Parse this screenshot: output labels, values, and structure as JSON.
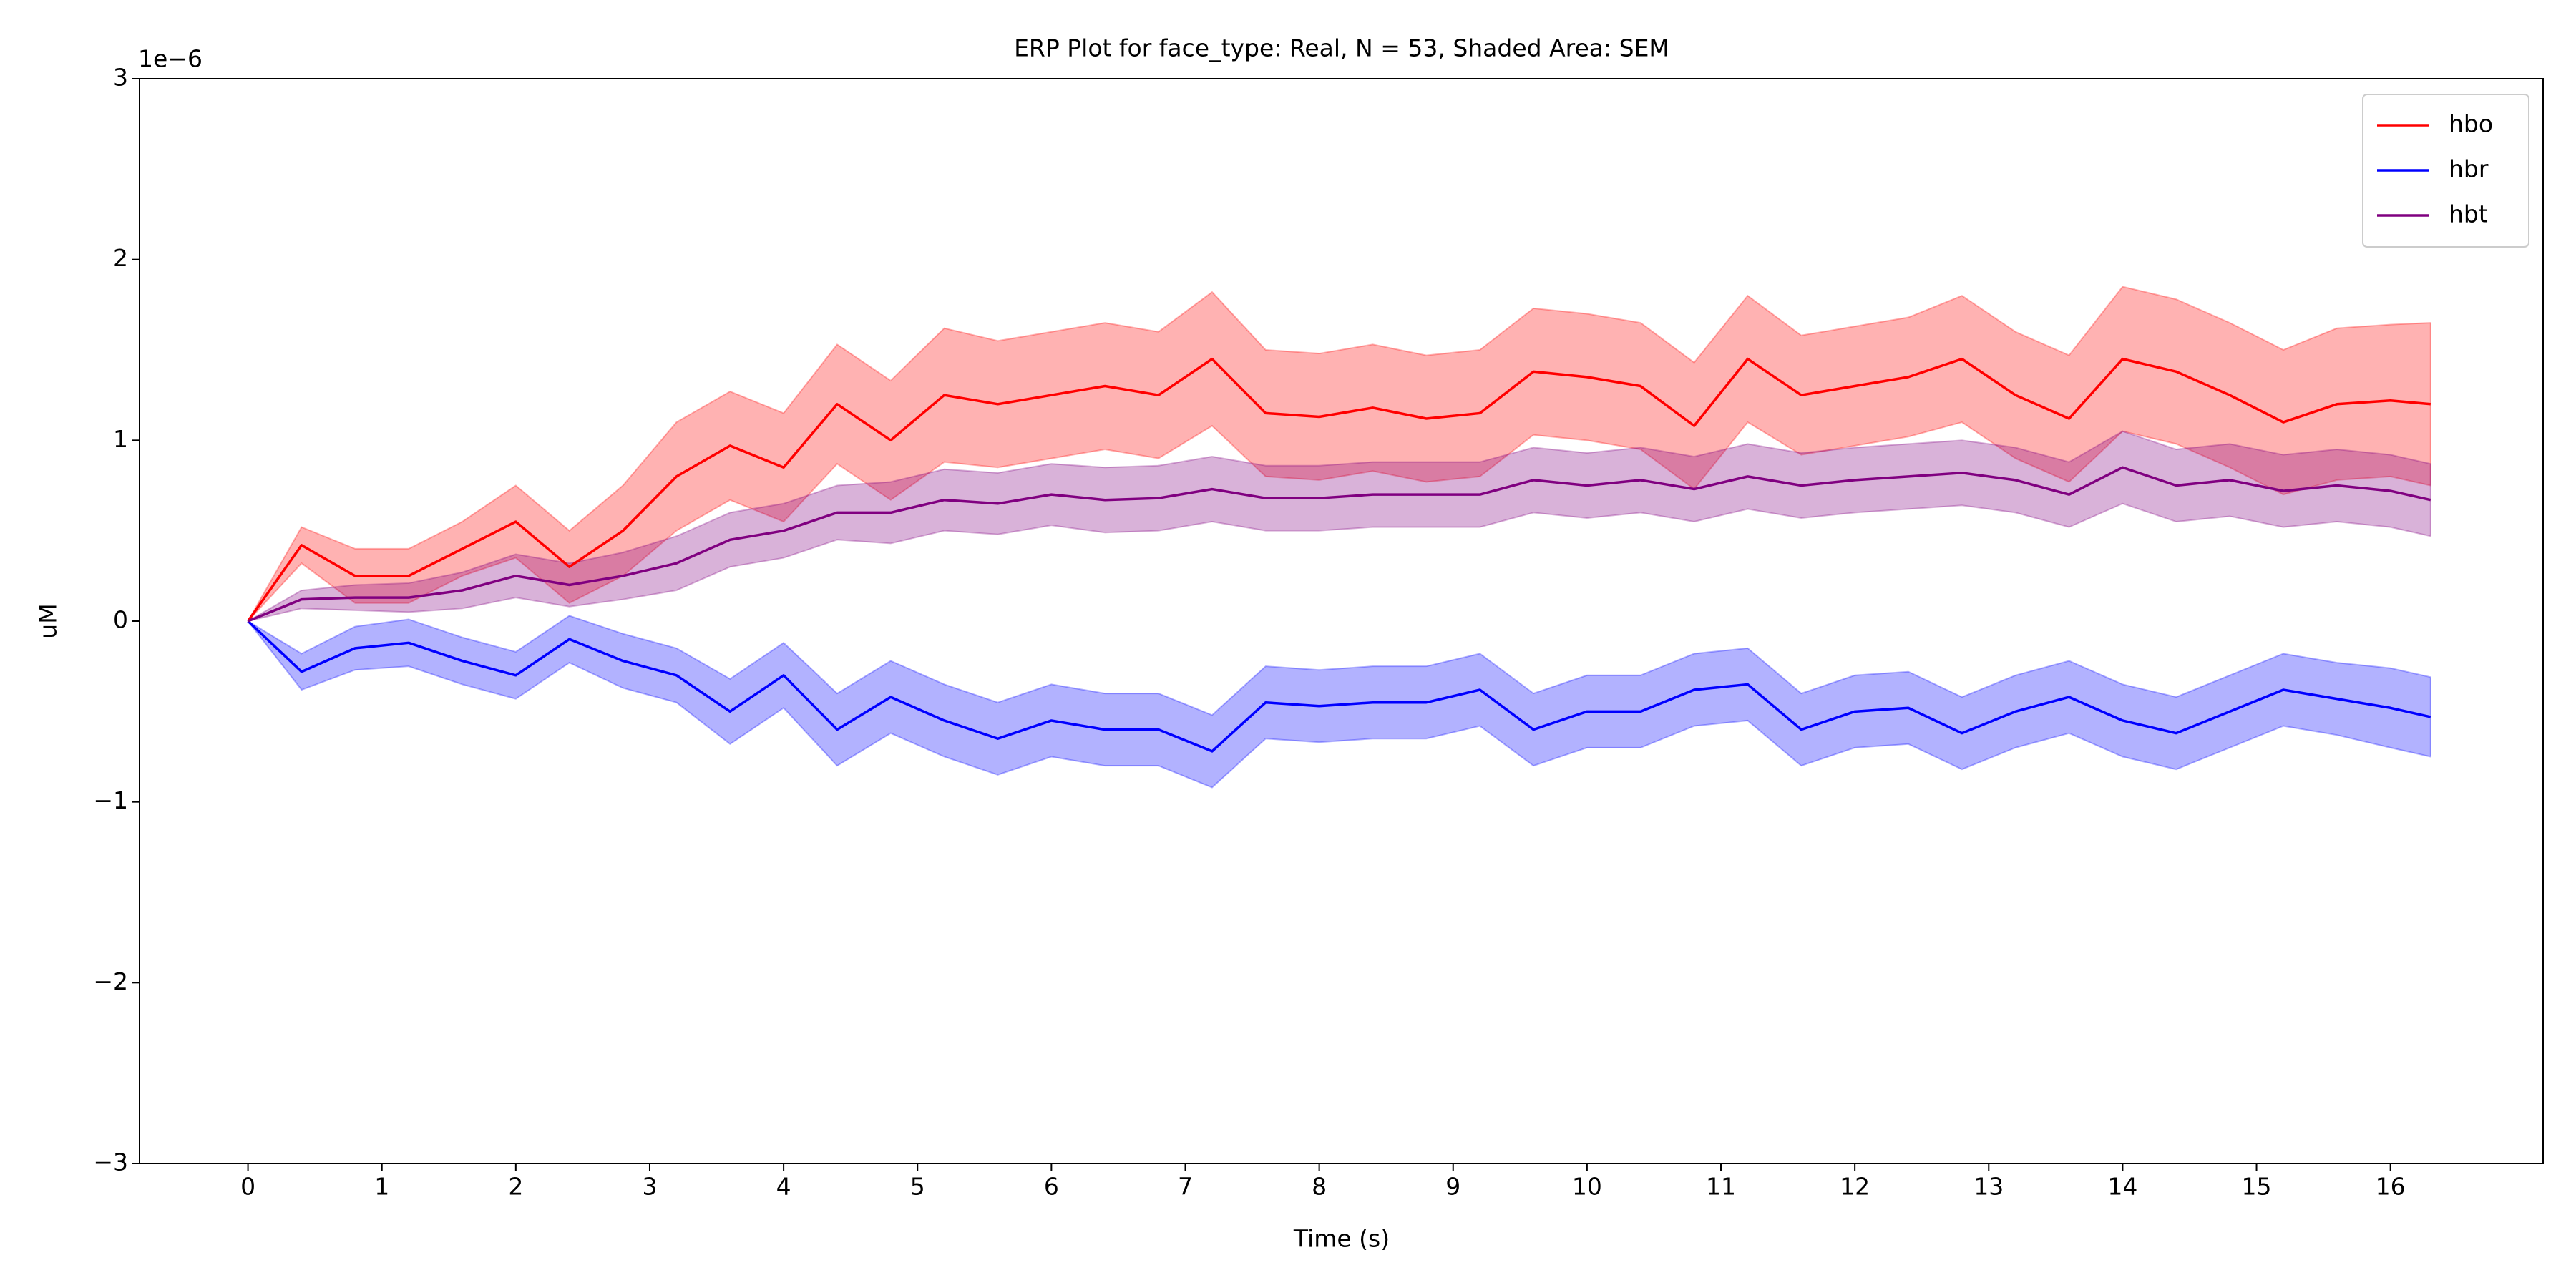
{
  "chart_data": {
    "type": "line",
    "title": "ERP Plot for face_type: Real, N = 53, Shaded Area: SEM",
    "xlabel": "Time (s)",
    "ylabel": "uM",
    "y_offset_label": "1e−6",
    "x": [
      0,
      0.4,
      0.8,
      1.2,
      1.6,
      2.0,
      2.4,
      2.8,
      3.2,
      3.6,
      4.0,
      4.4,
      4.8,
      5.2,
      5.6,
      6.0,
      6.4,
      6.8,
      7.2,
      7.6,
      8.0,
      8.4,
      8.8,
      9.2,
      9.6,
      10.0,
      10.4,
      10.8,
      11.2,
      11.6,
      12.0,
      12.4,
      12.8,
      13.2,
      13.6,
      14.0,
      14.4,
      14.8,
      15.2,
      15.6,
      16.0,
      16.3
    ],
    "series": [
      {
        "name": "hbo",
        "color": "#ff0000",
        "values": [
          0,
          0.42,
          0.25,
          0.25,
          0.4,
          0.55,
          0.3,
          0.5,
          0.8,
          0.97,
          0.85,
          1.2,
          1.0,
          1.25,
          1.2,
          1.25,
          1.3,
          1.25,
          1.45,
          1.15,
          1.13,
          1.18,
          1.12,
          1.15,
          1.38,
          1.35,
          1.3,
          1.08,
          1.45,
          1.25,
          1.3,
          1.35,
          1.45,
          1.25,
          1.12,
          1.45,
          1.38,
          1.25,
          1.1,
          1.2,
          1.22,
          1.2
        ],
        "sem": [
          0,
          0.1,
          0.15,
          0.15,
          0.15,
          0.2,
          0.2,
          0.25,
          0.3,
          0.3,
          0.3,
          0.33,
          0.33,
          0.37,
          0.35,
          0.35,
          0.35,
          0.35,
          0.37,
          0.35,
          0.35,
          0.35,
          0.35,
          0.35,
          0.35,
          0.35,
          0.35,
          0.35,
          0.35,
          0.33,
          0.33,
          0.33,
          0.35,
          0.35,
          0.35,
          0.4,
          0.4,
          0.4,
          0.4,
          0.42,
          0.42,
          0.45
        ]
      },
      {
        "name": "hbr",
        "color": "#0000ff",
        "values": [
          0,
          -0.28,
          -0.15,
          -0.12,
          -0.22,
          -0.3,
          -0.1,
          -0.22,
          -0.3,
          -0.5,
          -0.3,
          -0.6,
          -0.42,
          -0.55,
          -0.65,
          -0.55,
          -0.6,
          -0.6,
          -0.72,
          -0.45,
          -0.47,
          -0.45,
          -0.45,
          -0.38,
          -0.6,
          -0.5,
          -0.5,
          -0.38,
          -0.35,
          -0.6,
          -0.5,
          -0.48,
          -0.62,
          -0.5,
          -0.42,
          -0.55,
          -0.62,
          -0.5,
          -0.38,
          -0.43,
          -0.48,
          -0.53
        ],
        "sem": [
          0,
          0.1,
          0.12,
          0.13,
          0.13,
          0.13,
          0.13,
          0.15,
          0.15,
          0.18,
          0.18,
          0.2,
          0.2,
          0.2,
          0.2,
          0.2,
          0.2,
          0.2,
          0.2,
          0.2,
          0.2,
          0.2,
          0.2,
          0.2,
          0.2,
          0.2,
          0.2,
          0.2,
          0.2,
          0.2,
          0.2,
          0.2,
          0.2,
          0.2,
          0.2,
          0.2,
          0.2,
          0.2,
          0.2,
          0.2,
          0.22,
          0.22
        ]
      },
      {
        "name": "hbt",
        "color": "#800080",
        "values": [
          0,
          0.12,
          0.13,
          0.13,
          0.17,
          0.25,
          0.2,
          0.25,
          0.32,
          0.45,
          0.5,
          0.6,
          0.6,
          0.67,
          0.65,
          0.7,
          0.67,
          0.68,
          0.73,
          0.68,
          0.68,
          0.7,
          0.7,
          0.7,
          0.78,
          0.75,
          0.78,
          0.73,
          0.8,
          0.75,
          0.78,
          0.8,
          0.82,
          0.78,
          0.7,
          0.85,
          0.75,
          0.78,
          0.72,
          0.75,
          0.72,
          0.67
        ],
        "sem": [
          0,
          0.05,
          0.07,
          0.08,
          0.1,
          0.12,
          0.12,
          0.13,
          0.15,
          0.15,
          0.15,
          0.15,
          0.17,
          0.17,
          0.17,
          0.17,
          0.18,
          0.18,
          0.18,
          0.18,
          0.18,
          0.18,
          0.18,
          0.18,
          0.18,
          0.18,
          0.18,
          0.18,
          0.18,
          0.18,
          0.18,
          0.18,
          0.18,
          0.18,
          0.18,
          0.2,
          0.2,
          0.2,
          0.2,
          0.2,
          0.2,
          0.2
        ]
      }
    ],
    "xlim": [
      -0.81,
      17.14
    ],
    "ylim": [
      -3,
      3
    ],
    "xticks": [
      0,
      1,
      2,
      3,
      4,
      5,
      6,
      7,
      8,
      9,
      10,
      11,
      12,
      13,
      14,
      15,
      16
    ],
    "yticks": [
      {
        "value": -3,
        "label": "−3"
      },
      {
        "value": -2,
        "label": "−2"
      },
      {
        "value": -1,
        "label": "−1"
      },
      0,
      1,
      2,
      3
    ],
    "legend": "upper right"
  }
}
